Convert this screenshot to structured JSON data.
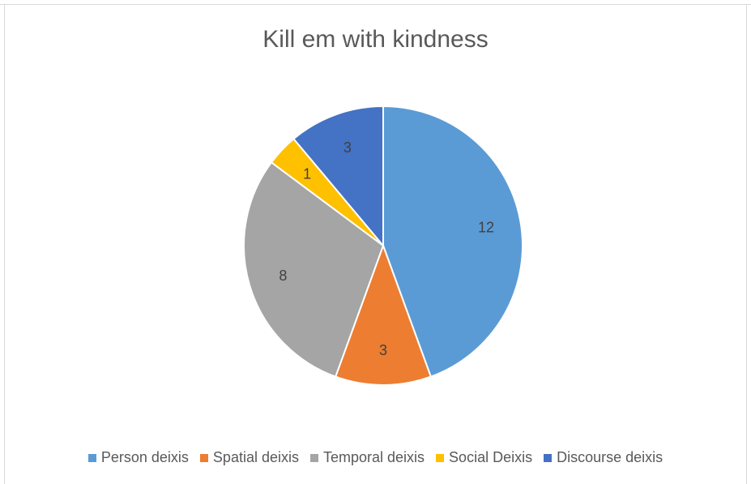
{
  "chart_data": {
    "type": "pie",
    "title": "Kill em with kindness",
    "legend_position": "bottom",
    "categories": [
      "Person deixis",
      "Spatial deixis",
      "Temporal deixis",
      "Social Deixis",
      "Discourse deixis"
    ],
    "values": [
      12,
      3,
      8,
      1,
      3
    ],
    "data_labels": [
      "12",
      "3",
      "8",
      "1",
      "3"
    ],
    "colors": [
      "#5B9BD5",
      "#ED7D31",
      "#A5A5A5",
      "#FFC000",
      "#4472C4"
    ]
  }
}
